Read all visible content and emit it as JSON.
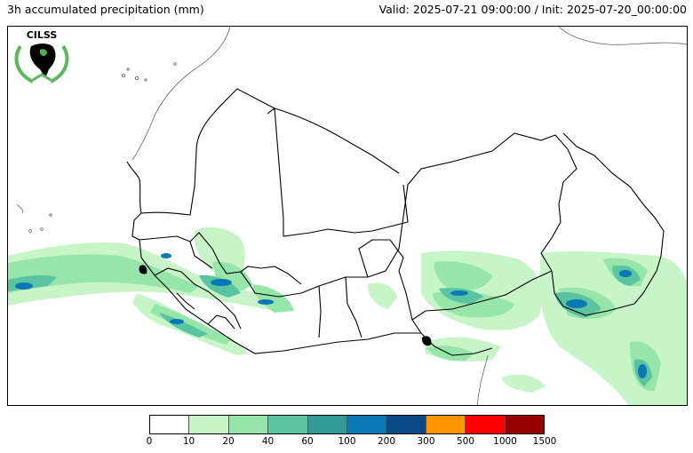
{
  "header": {
    "title": "3h accumulated precipitation (mm)",
    "valid_init": "Valid: 2025-07-21 09:00:00 / Init: 2025-07-20_00:00:00"
  },
  "logo": {
    "text": "CILSS"
  },
  "colorbar": {
    "levels": [
      "0",
      "10",
      "20",
      "40",
      "60",
      "100",
      "200",
      "300",
      "500",
      "1000",
      "1500"
    ],
    "colors": [
      "#ffffff",
      "#c8f5c8",
      "#96e6aa",
      "#5ac3a0",
      "#329b96",
      "#0a78b4",
      "#0a4b87",
      "#ff9600",
      "#ff0000",
      "#960000"
    ]
  },
  "colors": {
    "border": "#000000",
    "coast": "#666666",
    "rain_light": "#c8f5c8",
    "rain_mid": "#96e6aa",
    "rain_heavy": "#5ac3a0",
    "rain_very_heavy": "#0a78b4"
  }
}
